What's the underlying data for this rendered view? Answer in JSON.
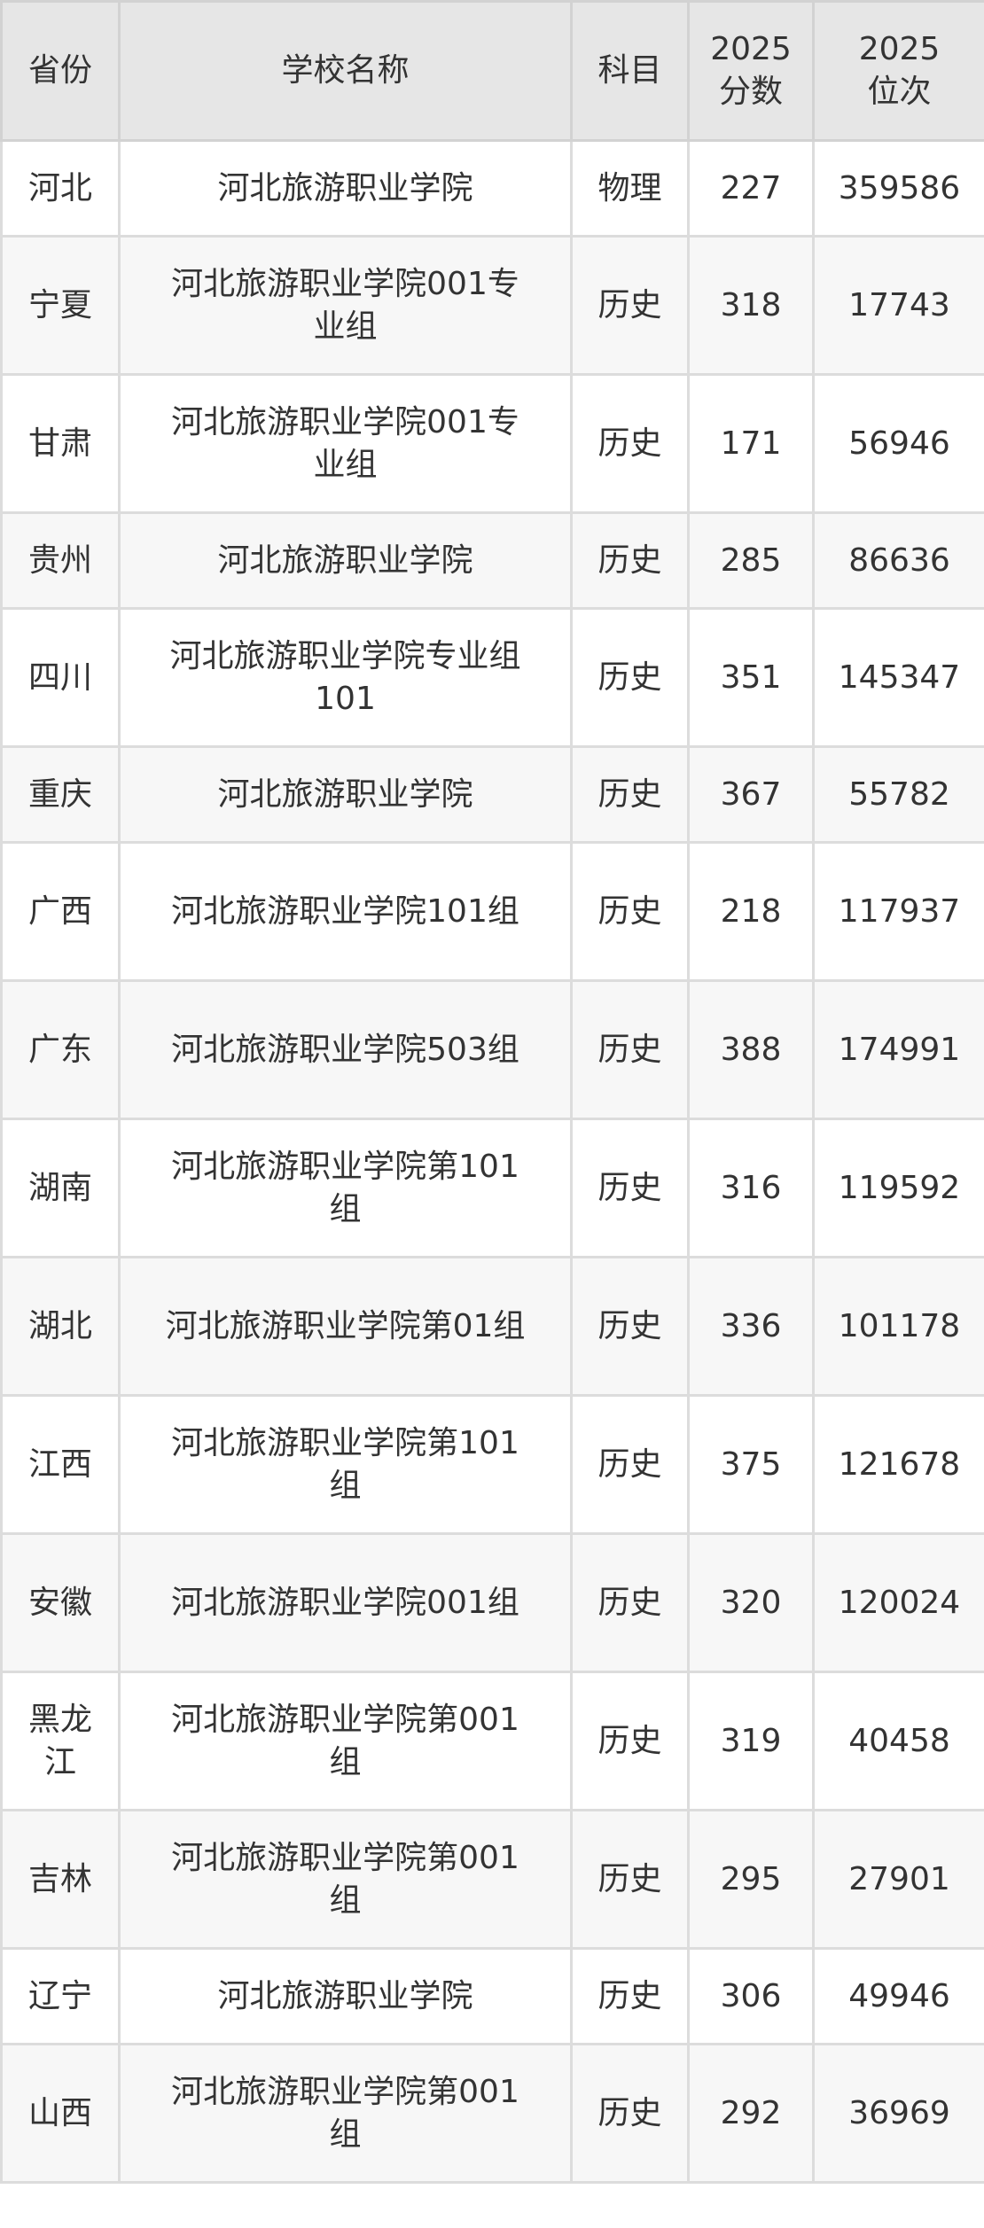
{
  "table": {
    "headers": [
      "省份",
      "学校名称",
      "科目",
      "2025分数",
      "2025位次"
    ],
    "header_lines": [
      [
        "省份"
      ],
      [
        "学校名称"
      ],
      [
        "科目"
      ],
      [
        "2025",
        "分数"
      ],
      [
        "2025",
        "位次"
      ]
    ],
    "rows": [
      {
        "province": "河北",
        "school": "河北旅游职业学院",
        "subject": "物理",
        "score": "227",
        "rank": "359586"
      },
      {
        "province": "宁夏",
        "school": "河北旅游职业学院001专业组",
        "subject": "历史",
        "score": "318",
        "rank": "17743"
      },
      {
        "province": "甘肃",
        "school": "河北旅游职业学院001专业组",
        "subject": "历史",
        "score": "171",
        "rank": "56946"
      },
      {
        "province": "贵州",
        "school": "河北旅游职业学院",
        "subject": "历史",
        "score": "285",
        "rank": "86636"
      },
      {
        "province": "四川",
        "school": "河北旅游职业学院专业组101",
        "subject": "历史",
        "score": "351",
        "rank": "145347"
      },
      {
        "province": "重庆",
        "school": "河北旅游职业学院",
        "subject": "历史",
        "score": "367",
        "rank": "55782"
      },
      {
        "province": "广西",
        "school": "河北旅游职业学院101组",
        "subject": "历史",
        "score": "218",
        "rank": "117937"
      },
      {
        "province": "广东",
        "school": "河北旅游职业学院503组",
        "subject": "历史",
        "score": "388",
        "rank": "174991"
      },
      {
        "province": "湖南",
        "school": "河北旅游职业学院第101组",
        "subject": "历史",
        "score": "316",
        "rank": "119592"
      },
      {
        "province": "湖北",
        "school": "河北旅游职业学院第01组",
        "subject": "历史",
        "score": "336",
        "rank": "101178"
      },
      {
        "province": "江西",
        "school": "河北旅游职业学院第101组",
        "subject": "历史",
        "score": "375",
        "rank": "121678"
      },
      {
        "province": "安徽",
        "school": "河北旅游职业学院001组",
        "subject": "历史",
        "score": "320",
        "rank": "120024"
      },
      {
        "province": "黑龙江",
        "school": "河北旅游职业学院第001组",
        "subject": "历史",
        "score": "319",
        "rank": "40458"
      },
      {
        "province": "吉林",
        "school": "河北旅游职业学院第001组",
        "subject": "历史",
        "score": "295",
        "rank": "27901"
      },
      {
        "province": "辽宁",
        "school": "河北旅游职业学院",
        "subject": "历史",
        "score": "306",
        "rank": "49946"
      },
      {
        "province": "山西",
        "school": "河北旅游职业学院第001组",
        "subject": "历史",
        "score": "292",
        "rank": "36969"
      }
    ]
  }
}
